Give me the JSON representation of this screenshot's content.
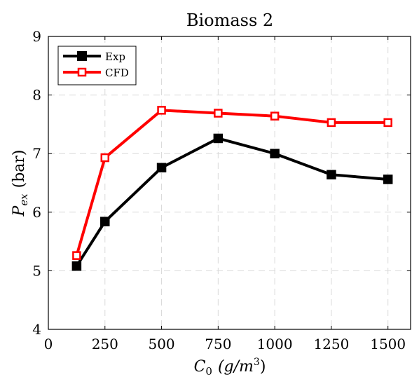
{
  "chart_data": {
    "type": "line",
    "title": "Biomass 2",
    "xlabel_main": "C",
    "xlabel_sub": "0",
    "xlabel_units": "(g/m",
    "xlabel_sup": "3",
    "xlabel_close": ")",
    "ylabel_main": "P",
    "ylabel_sub": "ex",
    "ylabel_units": "(bar)",
    "xlim": [
      0,
      1600
    ],
    "ylim": [
      4,
      9
    ],
    "xticks": [
      0,
      250,
      500,
      750,
      1000,
      1250,
      1500
    ],
    "yticks": [
      4,
      5,
      6,
      7,
      8,
      9
    ],
    "grid": true,
    "legend_position": "top-left",
    "x": [
      125,
      250,
      500,
      750,
      1000,
      1250,
      1500
    ],
    "series": [
      {
        "name": "Exp",
        "values": [
          5.08,
          5.84,
          6.76,
          7.26,
          7.0,
          6.64,
          6.56
        ],
        "color": "#000000",
        "marker": "filled-square"
      },
      {
        "name": "CFD",
        "values": [
          5.26,
          6.93,
          7.74,
          7.69,
          7.64,
          7.53,
          7.53
        ],
        "color": "#ff0000",
        "marker": "hollow-square"
      }
    ]
  }
}
